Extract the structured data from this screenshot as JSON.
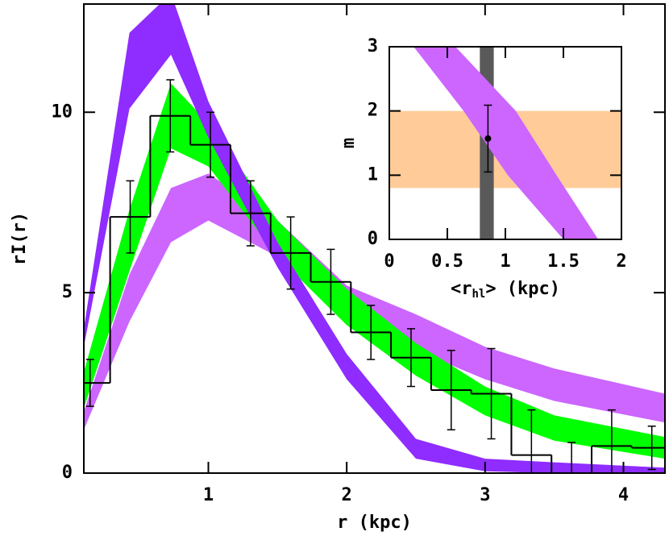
{
  "chart_data": [
    {
      "type": "histogram",
      "xlabel": "r (kpc)",
      "ylabel": "rI(r)",
      "xlim": [
        0.1,
        4.3
      ],
      "ylim": [
        0,
        13
      ],
      "xticks": [
        1,
        2,
        3,
        4
      ],
      "yticks": [
        0,
        5,
        10
      ],
      "bins": [
        0,
        0.29,
        0.58,
        0.87,
        1.16,
        1.45,
        1.74,
        2.03,
        2.32,
        2.61,
        2.9,
        3.19,
        3.48,
        3.77,
        4.06,
        4.35
      ],
      "values": [
        2.5,
        7.1,
        9.9,
        9.1,
        7.2,
        6.1,
        5.3,
        3.9,
        3.2,
        2.3,
        2.2,
        0.5,
        0,
        0.75,
        0.7
      ],
      "errors": [
        0.65,
        1.0,
        1.0,
        0.9,
        0.9,
        1.0,
        0.9,
        0.75,
        0.8,
        1.1,
        1.25,
        1.25,
        0.85,
        1.0,
        0.6
      ],
      "color": "#000000",
      "bands": [
        {
          "color": "#cc66ff",
          "x": [
            0.1,
            0.43,
            0.73,
            1.0,
            1.5,
            2.0,
            2.5,
            3.0,
            3.5,
            4.3
          ],
          "lower": [
            1.2,
            4.2,
            6.4,
            7.0,
            6.0,
            4.2,
            3.4,
            2.6,
            2.0,
            1.4
          ],
          "upper": [
            1.7,
            5.5,
            7.9,
            8.3,
            7.0,
            5.2,
            4.4,
            3.5,
            2.9,
            2.2
          ]
        },
        {
          "color": "#00ff00",
          "x": [
            0.1,
            0.43,
            0.73,
            1.0,
            1.5,
            2.0,
            2.5,
            3.0,
            3.5,
            4.3
          ],
          "lower": [
            1.8,
            5.6,
            9.0,
            8.5,
            6.0,
            4.1,
            2.7,
            1.6,
            0.9,
            0.4
          ],
          "upper": [
            2.8,
            7.3,
            10.8,
            9.7,
            7.0,
            5.1,
            3.6,
            2.4,
            1.6,
            1.0
          ]
        },
        {
          "color": "#8f2cff",
          "x": [
            0.1,
            0.43,
            0.73,
            1.0,
            1.5,
            2.0,
            2.5,
            3.0,
            3.5,
            4.3
          ],
          "lower": [
            3.5,
            10.1,
            11.6,
            9.3,
            5.7,
            2.6,
            0.4,
            0.05,
            0,
            0
          ],
          "upper": [
            4.0,
            12.2,
            13.3,
            10.3,
            6.4,
            3.3,
            0.95,
            0.4,
            0.3,
            0.15
          ]
        }
      ]
    },
    {
      "type": "scatter",
      "xlabel": [
        "<r",
        "hl",
        "> (kpc)"
      ],
      "ylabel": "m",
      "xlim": [
        0,
        2
      ],
      "ylim": [
        0,
        3
      ],
      "xticks": [
        0,
        0.5,
        1,
        1.5,
        2
      ],
      "yticks": [
        0,
        1,
        2,
        3
      ],
      "x": [
        0.85
      ],
      "values": [
        1.57
      ],
      "errors": [
        0.52
      ],
      "color": "#000000",
      "hspan": {
        "lower": 0.8,
        "upper": 2.0,
        "color": "#ffcc99"
      },
      "vspan": {
        "lower": 0.78,
        "upper": 0.9,
        "color": "#595959"
      },
      "bands": [
        {
          "color": "#cc66ff",
          "y": [
            3,
            2,
            1,
            0
          ],
          "left": [
            0.21,
            0.64,
            1.02,
            1.5
          ],
          "right": [
            0.57,
            1.09,
            1.44,
            1.8
          ]
        }
      ]
    }
  ]
}
